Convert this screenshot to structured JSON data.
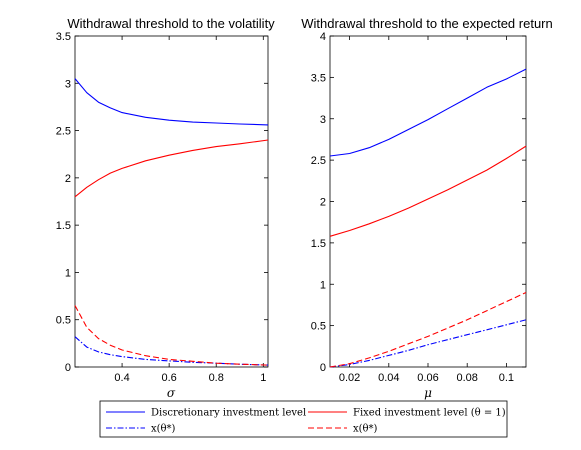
{
  "chart_data": [
    {
      "type": "line",
      "title": "Withdrawal threshold to the volatility",
      "xlabel": "σ",
      "ylabel": "",
      "xlim": [
        0.2,
        1.02
      ],
      "ylim": [
        0,
        3.5
      ],
      "xticks": [
        0.4,
        0.6,
        0.8,
        1
      ],
      "xtick_labels": [
        "0.4",
        "0.6",
        "0.8",
        "1"
      ],
      "yticks": [
        0,
        0.5,
        1,
        1.5,
        2,
        2.5,
        3,
        3.5
      ],
      "ytick_labels": [
        "0",
        "0.5",
        "1",
        "1.5",
        "2",
        "2.5",
        "3",
        "3.5"
      ],
      "x": [
        0.2,
        0.25,
        0.3,
        0.35,
        0.4,
        0.5,
        0.6,
        0.7,
        0.8,
        0.9,
        1.02
      ],
      "series": [
        {
          "key": "disc",
          "values": [
            3.05,
            2.9,
            2.8,
            2.74,
            2.69,
            2.64,
            2.61,
            2.59,
            2.58,
            2.57,
            2.56
          ]
        },
        {
          "key": "fixed",
          "values": [
            1.8,
            1.9,
            1.98,
            2.05,
            2.1,
            2.18,
            2.24,
            2.29,
            2.33,
            2.36,
            2.4
          ]
        },
        {
          "key": "low_disc",
          "values": [
            0.32,
            0.21,
            0.16,
            0.13,
            0.11,
            0.08,
            0.065,
            0.05,
            0.04,
            0.03,
            0.02
          ]
        },
        {
          "key": "low_fixed",
          "values": [
            0.65,
            0.42,
            0.3,
            0.23,
            0.18,
            0.12,
            0.08,
            0.06,
            0.04,
            0.03,
            0.02
          ]
        }
      ]
    },
    {
      "type": "line",
      "title": "Withdrawal threshold to the expected return",
      "xlabel": "μ",
      "ylabel": "",
      "xlim": [
        0.01,
        0.11
      ],
      "ylim": [
        0,
        4
      ],
      "xticks": [
        0.02,
        0.04,
        0.06,
        0.08,
        0.1
      ],
      "xtick_labels": [
        "0.02",
        "0.04",
        "0.06",
        "0.08",
        "0.1"
      ],
      "yticks": [
        0,
        0.5,
        1,
        1.5,
        2,
        2.5,
        3,
        3.5,
        4
      ],
      "ytick_labels": [
        "0",
        "0.5",
        "1",
        "1.5",
        "2",
        "2.5",
        "3",
        "3.5",
        "4"
      ],
      "x": [
        0.01,
        0.02,
        0.03,
        0.04,
        0.05,
        0.06,
        0.07,
        0.08,
        0.09,
        0.1,
        0.11
      ],
      "series": [
        {
          "key": "disc",
          "values": [
            2.55,
            2.58,
            2.65,
            2.75,
            2.87,
            2.99,
            3.12,
            3.25,
            3.38,
            3.48,
            3.6
          ]
        },
        {
          "key": "fixed",
          "values": [
            1.58,
            1.65,
            1.73,
            1.82,
            1.92,
            2.03,
            2.14,
            2.26,
            2.38,
            2.52,
            2.67
          ]
        },
        {
          "key": "low_disc",
          "values": [
            0.0,
            0.03,
            0.08,
            0.14,
            0.2,
            0.27,
            0.33,
            0.39,
            0.45,
            0.51,
            0.57
          ]
        },
        {
          "key": "low_fixed",
          "values": [
            0.0,
            0.04,
            0.11,
            0.19,
            0.28,
            0.37,
            0.47,
            0.57,
            0.68,
            0.79,
            0.9
          ]
        }
      ]
    }
  ],
  "legend": {
    "placement": "bottom",
    "entries": [
      {
        "key": "disc",
        "label": "Discretionary investment level",
        "color": "#0000ff",
        "dash": "solid"
      },
      {
        "key": "fixed",
        "label": "Fixed investment level (θ = 1)",
        "color": "#ff0000",
        "dash": "solid"
      },
      {
        "key": "low_disc",
        "label": "x(θ*)",
        "color": "#0000ff",
        "dash": "dashdot"
      },
      {
        "key": "low_fixed",
        "label": "x(θ*)",
        "color": "#ff0000",
        "dash": "dashed"
      }
    ]
  }
}
